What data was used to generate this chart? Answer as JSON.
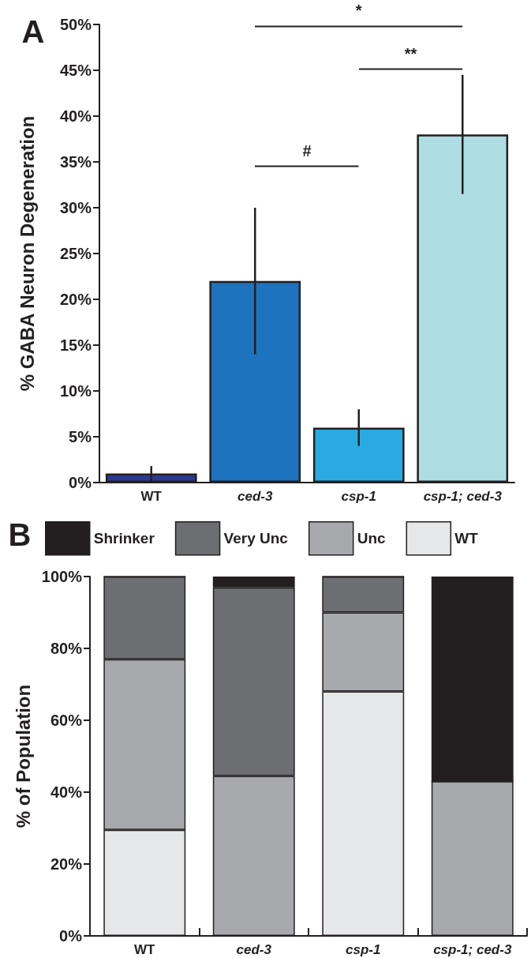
{
  "chart_data": [
    {
      "type": "bar",
      "ylabel": "% GABA Neuron Degeneration",
      "categories": [
        "WT",
        "ced-3",
        "csp-1",
        "csp-1; ced-3"
      ],
      "values": [
        1,
        22,
        6,
        38
      ],
      "colors": [
        "#2b3990",
        "#1e73be",
        "#29abe2",
        "#aedde3"
      ],
      "errors": [
        0.8,
        8,
        2,
        6.5
      ],
      "ylim": [
        0,
        50
      ],
      "yticks": [
        {
          "value": 0,
          "label": "0%"
        },
        {
          "value": 5,
          "label": "5%"
        },
        {
          "value": 10,
          "label": "10%"
        },
        {
          "value": 15,
          "label": "15%"
        },
        {
          "value": 20,
          "label": "20%"
        },
        {
          "value": 25,
          "label": "25%"
        },
        {
          "value": 30,
          "label": "30%"
        },
        {
          "value": 35,
          "label": "35%"
        },
        {
          "value": 40,
          "label": "40%"
        },
        {
          "value": 45,
          "label": "45%"
        },
        {
          "value": 50,
          "label": "50%"
        }
      ],
      "annotations": [
        "A",
        "*",
        "**",
        "#"
      ],
      "grid": false,
      "legend": false
    },
    {
      "type": "bar",
      "stacked": true,
      "ylabel": "% of Population",
      "categories": [
        "WT",
        "ced-3",
        "csp-1",
        "csp-1; ced-3"
      ],
      "series": [
        {
          "name": "WT",
          "color": "#e6e7e8",
          "values": [
            29.5,
            0,
            68,
            0
          ]
        },
        {
          "name": "Unc",
          "color": "#a7a9ac",
          "values": [
            47.5,
            44.5,
            22,
            43
          ]
        },
        {
          "name": "Very Unc",
          "color": "#6d6e71",
          "values": [
            23,
            52.5,
            10,
            0
          ]
        },
        {
          "name": "Shrinker",
          "color": "#231f20",
          "values": [
            0,
            3,
            0,
            57
          ]
        }
      ],
      "ylim": [
        0,
        100
      ],
      "yticks": [
        {
          "value": 0,
          "label": "0%"
        },
        {
          "value": 20,
          "label": "20%"
        },
        {
          "value": 40,
          "label": "40%"
        },
        {
          "value": 60,
          "label": "60%"
        },
        {
          "value": 80,
          "label": "80%"
        },
        {
          "value": 100,
          "label": "100%"
        }
      ],
      "annotations": [
        "B"
      ],
      "grid": false,
      "legend": "top"
    }
  ]
}
